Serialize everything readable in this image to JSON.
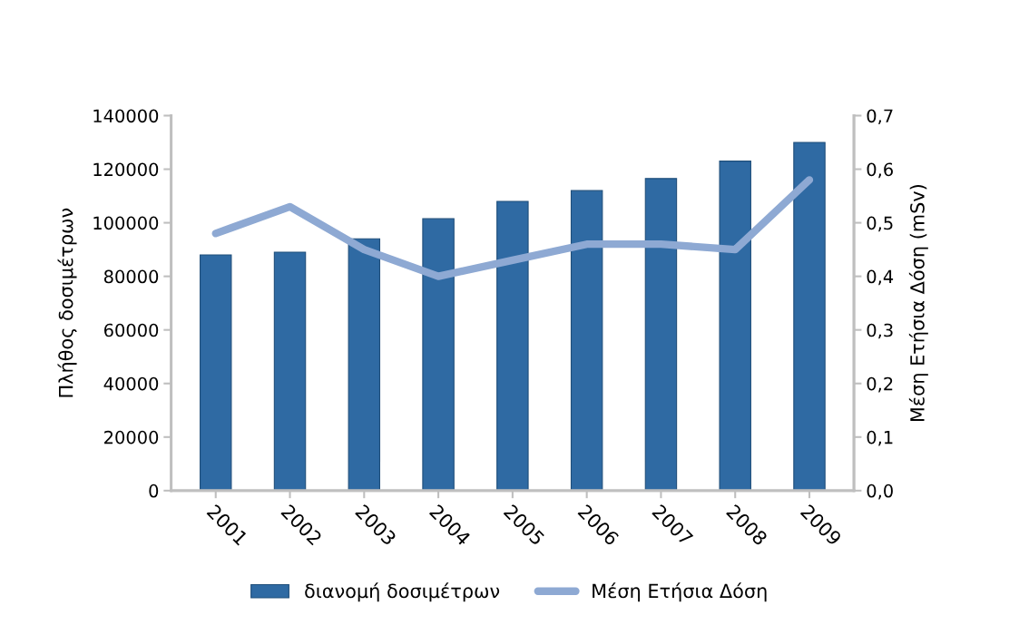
{
  "chart_data": {
    "type": "bar",
    "ylabel": "Πλήθος δοσιμέτρων",
    "y2label": "Μέση Ετήσια Δόση (mSv)",
    "categories": [
      "2001",
      "2002",
      "2003",
      "2004",
      "2005",
      "2006",
      "2007",
      "2008",
      "2009"
    ],
    "series": [
      {
        "name": "διανομή δοσιμέτρων",
        "color": "#2f6aa3",
        "values": [
          88000,
          89000,
          94000,
          101500,
          108000,
          112000,
          116500,
          123000,
          130000
        ]
      },
      {
        "name": "Μέση Ετήσια Δόση",
        "type": "line",
        "axis": "y2",
        "color": "#8ea9d3",
        "values": [
          0.48,
          0.53,
          0.45,
          0.4,
          0.43,
          0.46,
          0.46,
          0.45,
          0.58
        ]
      }
    ],
    "ylim": [
      0,
      140000
    ],
    "yticks": [
      0,
      20000,
      40000,
      60000,
      80000,
      100000,
      120000,
      140000
    ],
    "y2lim": [
      0,
      0.7
    ],
    "y2ticks": [
      {
        "value": 0,
        "label": "0,0"
      },
      {
        "value": 0.1,
        "label": "0,1"
      },
      {
        "value": 0.2,
        "label": "0,2"
      },
      {
        "value": 0.3,
        "label": "0,3"
      },
      {
        "value": 0.4,
        "label": "0,4"
      },
      {
        "value": 0.5,
        "label": "0,5"
      },
      {
        "value": 0.6,
        "label": "0,6"
      },
      {
        "value": 0.7,
        "label": "0,7"
      }
    ],
    "grid": false,
    "legend": "bottom",
    "marker": "none",
    "line_style": "solid"
  }
}
